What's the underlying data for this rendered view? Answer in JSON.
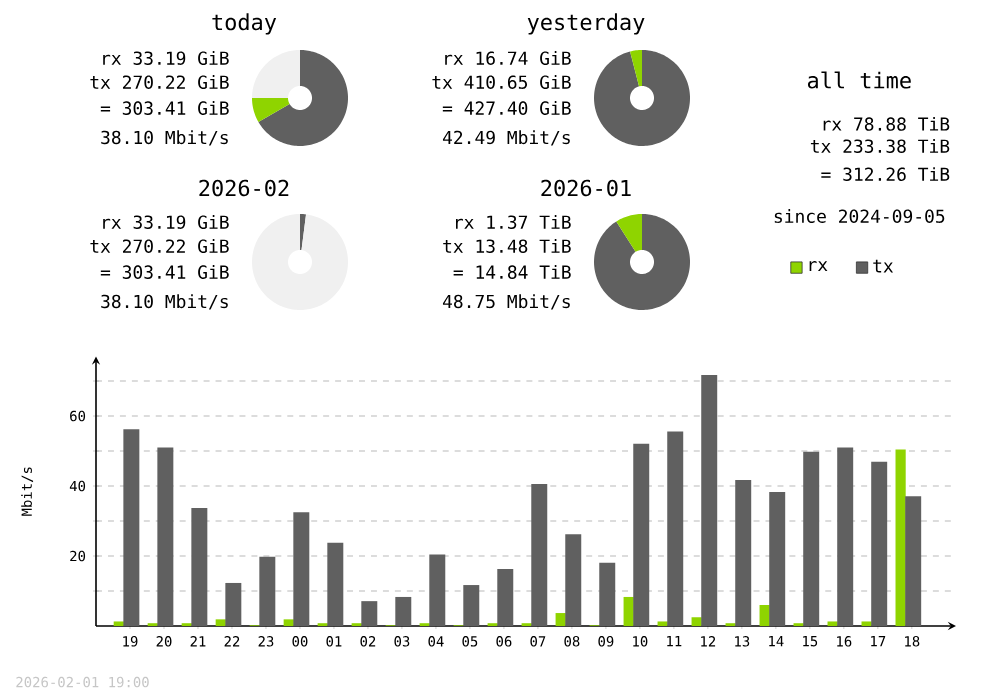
{
  "chart_data": [
    {
      "type": "donut",
      "title": "today",
      "categories": [
        null,
        null,
        null
      ],
      "values": [
        66.7,
        8.3,
        25
      ],
      "colors": [
        "#606060",
        "#8fd400",
        "#f0f0f0"
      ],
      "annotations": [
        "rx 33.19 GiB",
        "tx 270.22 GiB",
        "= 303.41 GiB",
        "38.10 Mbit/s"
      ]
    },
    {
      "type": "donut",
      "title": "yesterday",
      "categories": [
        null,
        null,
        null
      ],
      "values": [
        96,
        4,
        null
      ],
      "colors": [
        "#606060",
        "#8fd400",
        "#f0f0f0"
      ],
      "annotations": [
        "rx 16.74 GiB",
        "tx 410.65 GiB",
        "= 427.40 GiB",
        "42.49 Mbit/s"
      ]
    },
    {
      "type": "other",
      "title": "all time",
      "annotations": [
        "rx 78.88 TiB",
        "tx 233.38 TiB",
        "= 312.26 TiB",
        "since 2024-09-05"
      ]
    },
    {
      "type": "donut",
      "title": "2026-02",
      "categories": [
        null,
        null,
        null
      ],
      "values": [
        2,
        null,
        98
      ],
      "colors": [
        "#606060",
        "#8fd400",
        "#f0f0f0"
      ],
      "annotations": [
        "rx 33.19 GiB",
        "tx 270.22 GiB",
        "= 303.41 GiB",
        "38.10 Mbit/s"
      ]
    },
    {
      "type": "donut",
      "title": "2026-01",
      "categories": [
        null,
        null,
        null
      ],
      "values": [
        91,
        9,
        null
      ],
      "colors": [
        "#606060",
        "#8fd400",
        "#f0f0f0"
      ],
      "annotations": [
        "rx 1.37 TiB",
        "tx 13.48 TiB",
        "= 14.84 TiB",
        "48.75 Mbit/s"
      ]
    },
    {
      "type": "bar",
      "ylabel": "Mbit/s",
      "categories": [
        "19",
        "20",
        "21",
        "22",
        "23",
        "00",
        "01",
        "02",
        "03",
        "04",
        "05",
        "06",
        "07",
        "08",
        "09",
        "10",
        "11",
        "12",
        "13",
        "14",
        "15",
        "16",
        "17",
        "18"
      ],
      "series": [
        {
          "name": "rx",
          "color": "#8fd400",
          "values": [
            1.3,
            0.8,
            0.8,
            1.9,
            0.2,
            1.9,
            0.8,
            0.8,
            0.2,
            0.8,
            0.2,
            0.8,
            0.8,
            3.7,
            0.2,
            8.3,
            1.3,
            2.5,
            0.8,
            6,
            0.8,
            1.3,
            1.3,
            50.4
          ]
        },
        {
          "name": "tx",
          "color": "#606060",
          "values": [
            56.2,
            51,
            33.7,
            12.3,
            19.8,
            32.5,
            23.8,
            7.1,
            8.3,
            20.4,
            11.7,
            16.3,
            40.6,
            26.2,
            18.1,
            52.1,
            55.6,
            71.7,
            41.7,
            38.3,
            49.8,
            51,
            46.9,
            37.1
          ]
        }
      ],
      "ylim": [
        0,
        77
      ],
      "yticks": [
        {
          "value": 10,
          "label": null
        },
        20,
        {
          "value": 30,
          "label": null
        },
        40,
        {
          "value": 50,
          "label": null
        },
        60,
        {
          "value": 70,
          "label": null
        }
      ],
      "grid": "y",
      "legend": "top right",
      "annotations": [
        "2026-02-01 19:00"
      ]
    }
  ]
}
